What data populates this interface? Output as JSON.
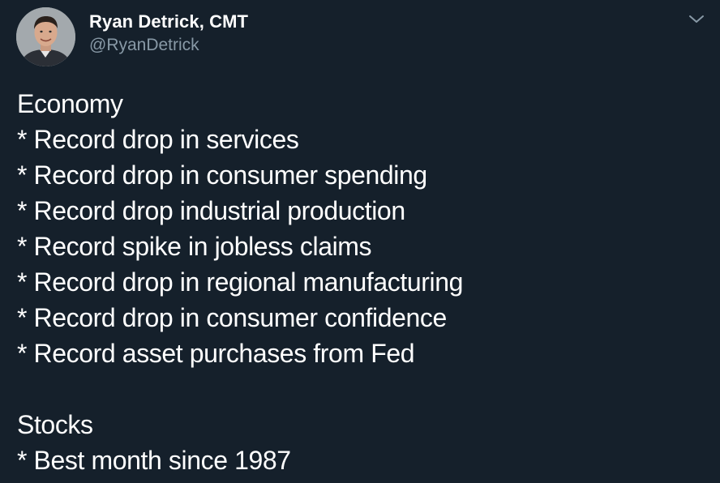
{
  "author": {
    "display_name": "Ryan Detrick, CMT",
    "handle": "@RyanDetrick",
    "avatar_icon": "user-avatar-photo"
  },
  "menu_icon": "chevron-down-icon",
  "colors": {
    "background": "#15202b",
    "text": "#ffffff",
    "secondary_text": "#8899a6"
  },
  "tweet": {
    "section1": {
      "heading": "Economy",
      "items": [
        "* Record drop in services",
        "* Record drop in consumer spending",
        "* Record drop industrial production",
        "* Record spike in jobless claims",
        "* Record drop in regional manufacturing",
        "* Record drop in consumer confidence",
        "* Record asset purchases from Fed"
      ]
    },
    "section2": {
      "heading": "Stocks",
      "items": [
        "* Best month since 1987"
      ]
    }
  }
}
